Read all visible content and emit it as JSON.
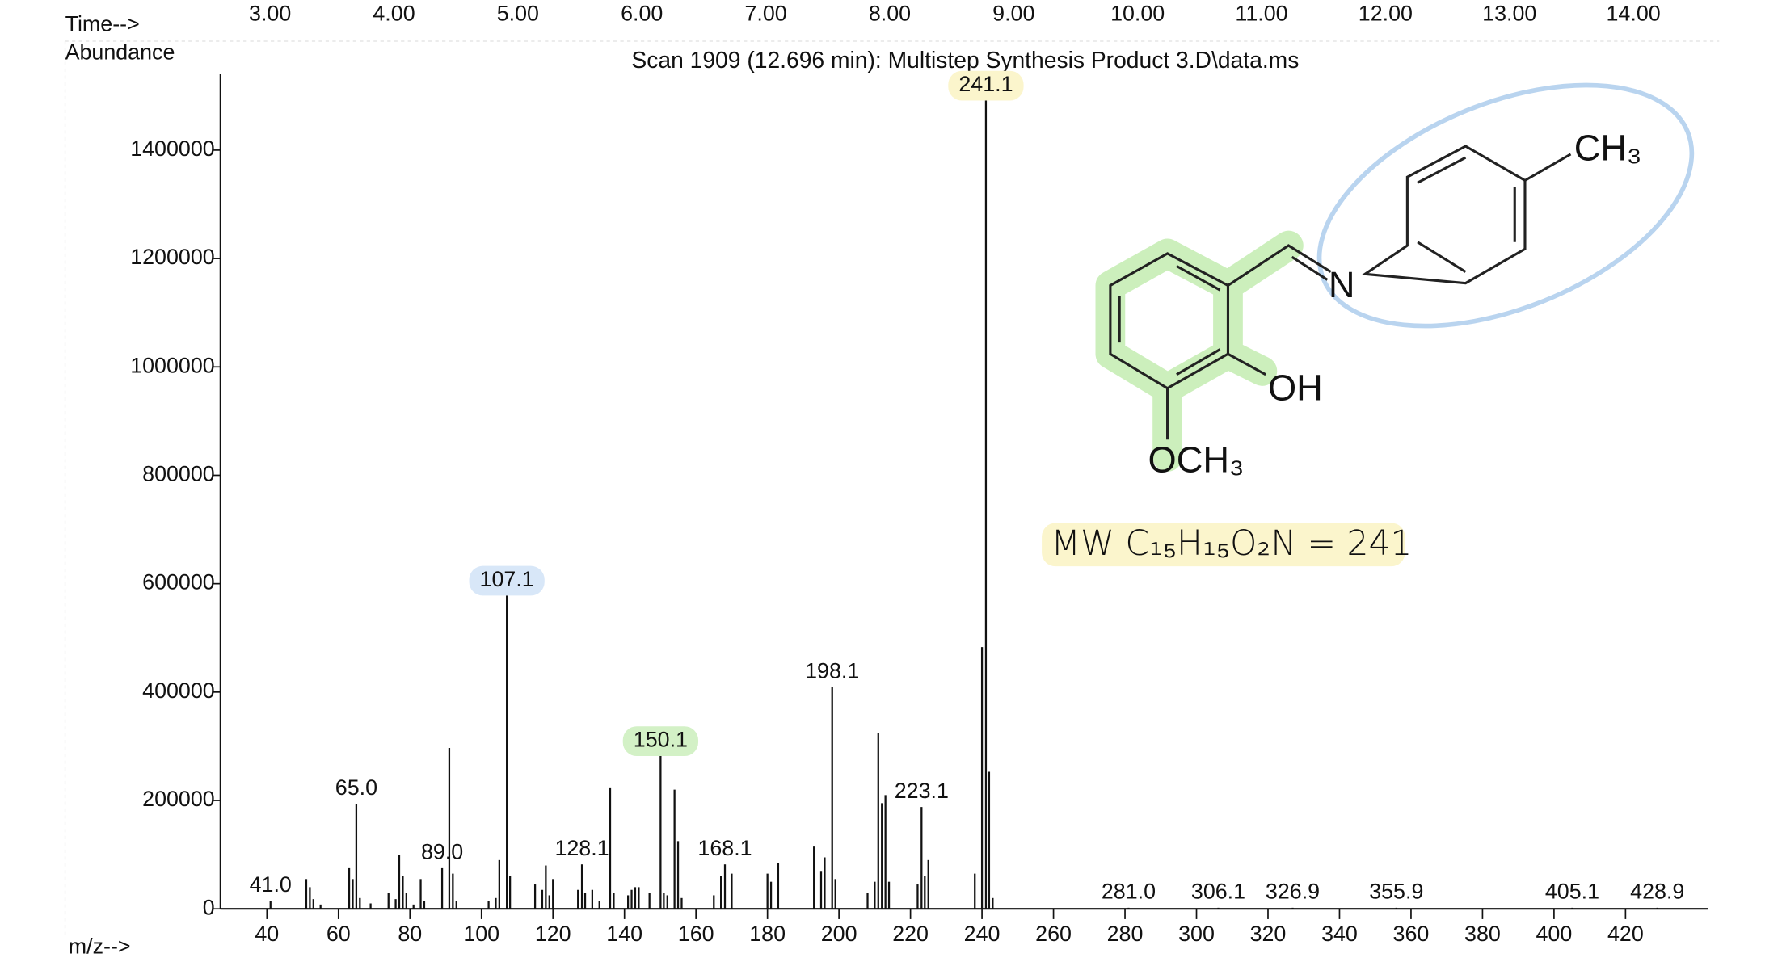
{
  "chart_data": {
    "type": "bar",
    "title": "Scan 1909 (12.696 min): Multistep Synthesis Product 3.D\\data.ms",
    "x_label": "m/z-->",
    "y_label": "Abundance",
    "x2_label": "Time-->",
    "color": "#111111",
    "x": [
      41.0,
      51,
      52,
      53,
      55,
      63,
      64,
      65.0,
      66,
      69,
      74,
      76,
      77,
      78,
      79,
      81,
      83,
      84,
      89.0,
      91,
      92,
      93,
      102,
      104,
      105,
      107.1,
      108,
      115,
      117,
      118,
      119,
      120,
      127,
      128.1,
      129,
      131,
      133,
      136,
      137,
      141,
      142,
      143,
      144,
      147,
      150.1,
      151,
      152,
      154,
      155,
      156,
      165,
      167,
      168.1,
      170,
      180,
      181,
      183,
      193,
      195,
      196,
      198.1,
      199,
      208,
      210,
      211,
      212,
      213,
      214,
      222,
      223.1,
      224,
      225,
      238,
      240,
      241.1,
      242,
      243,
      281.0,
      306.1,
      326.9,
      355.9,
      405.1,
      428.9
    ],
    "values": [
      15000,
      55000,
      40000,
      18000,
      8000,
      75000,
      55000,
      194000,
      20000,
      10000,
      30000,
      18000,
      100000,
      60000,
      30000,
      8000,
      55000,
      15000,
      75000,
      297000,
      65000,
      15000,
      15000,
      20000,
      90000,
      578000,
      60000,
      45000,
      35000,
      80000,
      25000,
      55000,
      35000,
      82000,
      30000,
      35000,
      15000,
      224000,
      30000,
      25000,
      35000,
      40000,
      40000,
      30000,
      282000,
      30000,
      25000,
      220000,
      125000,
      20000,
      25000,
      60000,
      82000,
      65000,
      65000,
      50000,
      85000,
      115000,
      70000,
      95000,
      409000,
      55000,
      30000,
      50000,
      325000,
      195000,
      210000,
      50000,
      45000,
      188000,
      60000,
      90000,
      65000,
      483000,
      1535000,
      253000,
      20000,
      2000,
      2000,
      2000,
      2000,
      2000,
      2000
    ],
    "x_labels": [
      "41.0",
      null,
      null,
      null,
      null,
      null,
      null,
      "65.0",
      null,
      null,
      null,
      null,
      null,
      null,
      null,
      null,
      null,
      null,
      "89.0",
      null,
      null,
      null,
      null,
      null,
      null,
      "107.1",
      null,
      null,
      null,
      null,
      null,
      null,
      null,
      "128.1",
      null,
      null,
      null,
      null,
      null,
      null,
      null,
      null,
      null,
      null,
      "150.1",
      null,
      null,
      null,
      null,
      null,
      null,
      null,
      "168.1",
      null,
      null,
      null,
      null,
      null,
      null,
      null,
      "198.1",
      null,
      null,
      null,
      null,
      null,
      null,
      null,
      null,
      "223.1",
      null,
      null,
      null,
      null,
      "241.1",
      null,
      null,
      "281.0",
      "306.1",
      "326.9",
      "355.9",
      "405.1",
      "428.9"
    ],
    "x_label_colors": [
      null,
      null,
      null,
      null,
      null,
      null,
      null,
      null,
      null,
      null,
      null,
      null,
      null,
      null,
      null,
      null,
      null,
      null,
      null,
      null,
      null,
      null,
      null,
      null,
      null,
      "#d8e7f8",
      null,
      null,
      null,
      null,
      null,
      null,
      null,
      null,
      null,
      null,
      null,
      null,
      null,
      null,
      null,
      null,
      null,
      null,
      "#d3f1c6",
      null,
      null,
      null,
      null,
      null,
      null,
      null,
      null,
      null,
      null,
      null,
      null,
      null,
      null,
      null,
      null,
      null,
      null,
      null,
      null,
      null,
      null,
      null,
      null,
      null,
      null,
      null,
      null,
      null,
      "#fbf5cc",
      null,
      null,
      null,
      null,
      null,
      null,
      null,
      null
    ],
    "xlim": [
      27,
      443
    ],
    "xticks": [
      40,
      60,
      80,
      100,
      120,
      140,
      160,
      180,
      200,
      220,
      240,
      260,
      280,
      300,
      320,
      340,
      360,
      380,
      400,
      420
    ],
    "ylim": [
      0,
      1540000
    ],
    "yticks": [
      0,
      200000,
      400000,
      600000,
      800000,
      1000000,
      1200000,
      1400000
    ],
    "x2lim": [
      2.6,
      14.6
    ],
    "x2ticks": [
      {
        "value": 3,
        "label": "3.00"
      },
      {
        "value": 4,
        "label": "4.00"
      },
      {
        "value": 5,
        "label": "5.00"
      },
      {
        "value": 6,
        "label": "6.00"
      },
      {
        "value": 7,
        "label": "7.00"
      },
      {
        "value": 8,
        "label": "8.00"
      },
      {
        "value": 9,
        "label": "9.00"
      },
      {
        "value": 10,
        "label": "10.00"
      },
      {
        "value": 11,
        "label": "11.00"
      },
      {
        "value": 12,
        "label": "12.00"
      },
      {
        "value": 13,
        "label": "13.00"
      },
      {
        "value": 14,
        "label": "14.00"
      }
    ],
    "annotations": {
      "atoms": {
        "ch3": "CH₃",
        "n": "N",
        "oh": "OH",
        "och3": "OCH₃"
      },
      "mw": "MW  C₁₅H₁₅O₂N  =  241"
    }
  }
}
